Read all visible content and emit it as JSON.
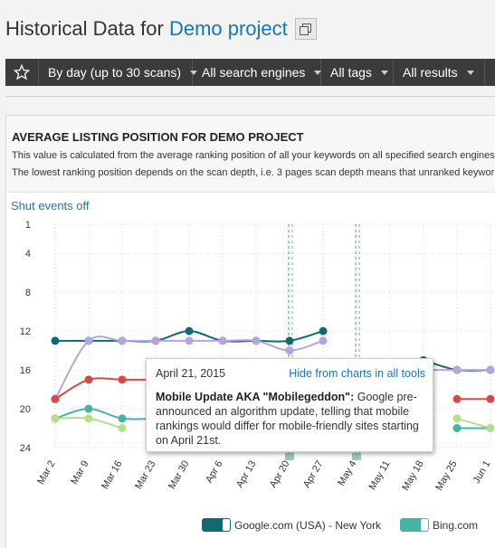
{
  "header": {
    "title_prefix": "Historical Data for ",
    "project_name": "Demo project",
    "copy_icon": "copy-icon"
  },
  "toolbar": {
    "star_icon": "star-icon",
    "period": "By day (up to 30 scans)",
    "engines": "All search engines",
    "tags": "All tags",
    "results": "All results"
  },
  "panel": {
    "title": "AVERAGE LISTING POSITION FOR DEMO PROJECT",
    "desc1": "This value is calculated from the average ranking position of all your keywords on all specified search engines",
    "desc2": "The lowest ranking position depends on the scan depth, i.e. 3 pages scan depth means that unranked keywor"
  },
  "events_toggle": "Shut events off",
  "tooltip": {
    "date": "April 21, 2015",
    "hide_link": "Hide from charts in all tools",
    "event_title": "Mobile Update AKA \"Mobilegeddon\":",
    "event_text": " Google pre-announced an algorithm update, telling that mobile rankings would differ for mobile-friendly sites starting on April 21st."
  },
  "legend": [
    {
      "name": "Google.com (USA) - New York",
      "color": "#0e6a73"
    },
    {
      "name": "Bing.com",
      "color": "#45b5a3"
    }
  ],
  "chart_data": {
    "type": "line",
    "y_reversed": true,
    "ylim": [
      1,
      24
    ],
    "yticks": [
      1,
      4,
      8,
      12,
      16,
      20,
      24
    ],
    "grid": true,
    "categories": [
      "Mar 2",
      "Mar 9",
      "Mar 16",
      "Mar 23",
      "Mar 30",
      "Apr 6",
      "Apr 13",
      "Apr 20",
      "Apr 27",
      "May 4",
      "May 11",
      "May 18",
      "May 25",
      "Jun 1"
    ],
    "event_markers": [
      "Apr 20",
      "May 4"
    ],
    "series": [
      {
        "name": "Google.com (USA) - New York",
        "color": "#0e6a73",
        "values": [
          13,
          13,
          13,
          13,
          12,
          13,
          13,
          13,
          12,
          null,
          null,
          15,
          16,
          16
        ]
      },
      {
        "color": "#b2a6dc",
        "values": [
          19,
          13,
          13,
          13,
          13,
          13,
          13,
          14,
          13,
          null,
          null,
          16,
          16,
          16
        ]
      },
      {
        "color": "#d94848",
        "values": [
          19,
          17,
          17,
          17,
          null,
          null,
          null,
          null,
          null,
          null,
          null,
          null,
          19,
          19
        ]
      },
      {
        "name": "Bing.com",
        "color": "#45b5a3",
        "values": [
          21,
          20,
          21,
          21,
          null,
          null,
          null,
          null,
          null,
          null,
          null,
          null,
          22,
          22
        ]
      },
      {
        "color": "#b5e08a",
        "values": [
          21,
          21,
          22,
          null,
          null,
          null,
          null,
          null,
          null,
          null,
          null,
          null,
          21,
          22
        ]
      }
    ]
  }
}
